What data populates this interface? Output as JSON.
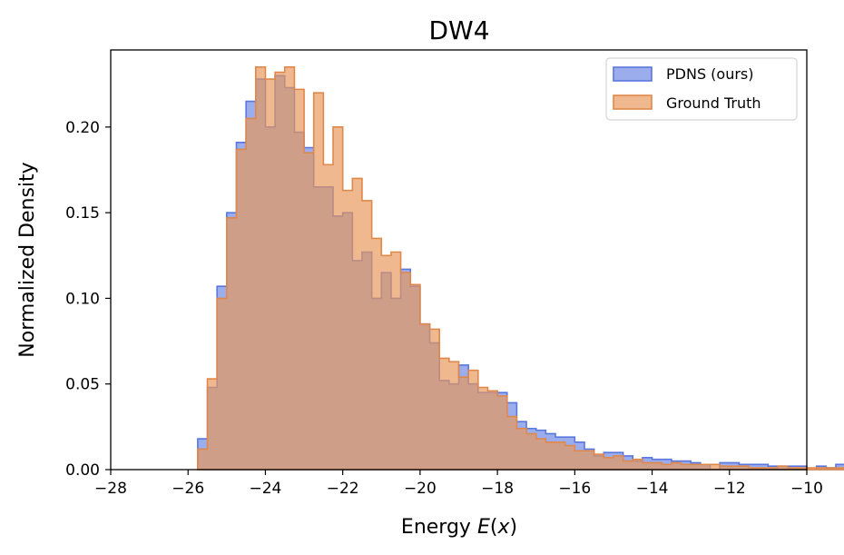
{
  "chart_data": {
    "type": "histogram",
    "title": "DW4",
    "xlabel_prefix": "Energy ",
    "xlabel_var": "E",
    "xlabel_suffix": "(",
    "xlabel_var2": "x",
    "xlabel_close": ")",
    "ylabel": "Normalized Density",
    "xlim": [
      -28,
      -10
    ],
    "ylim": [
      0,
      0.245
    ],
    "xticks": [
      -28,
      -26,
      -24,
      -22,
      -20,
      -18,
      -16,
      -14,
      -12,
      -10
    ],
    "xtick_labels": [
      "−28",
      "−26",
      "−24",
      "−22",
      "−20",
      "−18",
      "−16",
      "−14",
      "−12",
      "−10"
    ],
    "yticks": [
      0,
      0.05,
      0.1,
      0.15,
      0.2
    ],
    "ytick_labels": [
      "0.00",
      "0.05",
      "0.10",
      "0.15",
      "0.20"
    ],
    "grid": false,
    "legend_position": "top-right",
    "bin_start": -25.75,
    "bin_width": 0.25,
    "series": [
      {
        "name": "PDNS (ours)",
        "color": "#6b86e3",
        "edge": "#5a77de",
        "values": [
          0.018,
          0.048,
          0.107,
          0.15,
          0.191,
          0.215,
          0.228,
          0.2,
          0.23,
          0.223,
          0.197,
          0.188,
          0.165,
          0.165,
          0.148,
          0.15,
          0.122,
          0.127,
          0.1,
          0.115,
          0.1,
          0.117,
          0.107,
          0.085,
          0.074,
          0.052,
          0.05,
          0.061,
          0.05,
          0.045,
          0.045,
          0.045,
          0.039,
          0.028,
          0.024,
          0.023,
          0.021,
          0.019,
          0.019,
          0.016,
          0.012,
          0.008,
          0.01,
          0.01,
          0.008,
          0.005,
          0.007,
          0.006,
          0.006,
          0.005,
          0.005,
          0.004,
          0.003,
          0.0,
          0.004,
          0.004,
          0.003,
          0.003,
          0.003,
          0.002,
          0.002,
          0.002,
          0.002,
          0.0,
          0.002,
          0.001,
          0.003,
          0.002,
          0.0,
          0.002,
          0.003
        ]
      },
      {
        "name": "Ground Truth",
        "color": "#e8965a",
        "edge": "#e0884a",
        "values": [
          0.012,
          0.053,
          0.1,
          0.147,
          0.187,
          0.205,
          0.235,
          0.228,
          0.232,
          0.235,
          0.222,
          0.185,
          0.22,
          0.178,
          0.2,
          0.163,
          0.17,
          0.157,
          0.135,
          0.125,
          0.127,
          0.115,
          0.108,
          0.085,
          0.082,
          0.065,
          0.063,
          0.054,
          0.058,
          0.048,
          0.046,
          0.043,
          0.031,
          0.024,
          0.021,
          0.018,
          0.016,
          0.016,
          0.014,
          0.011,
          0.011,
          0.009,
          0.007,
          0.008,
          0.005,
          0.006,
          0.004,
          0.004,
          0.003,
          0.004,
          0.003,
          0.003,
          0.003,
          0.003,
          0.002,
          0.002,
          0.002,
          0.001,
          0.001,
          0.001,
          0.002,
          0.001,
          0.001,
          0.001,
          0.001,
          0.001,
          0.001,
          0.001,
          0.001,
          0.001,
          0.001
        ]
      }
    ]
  }
}
